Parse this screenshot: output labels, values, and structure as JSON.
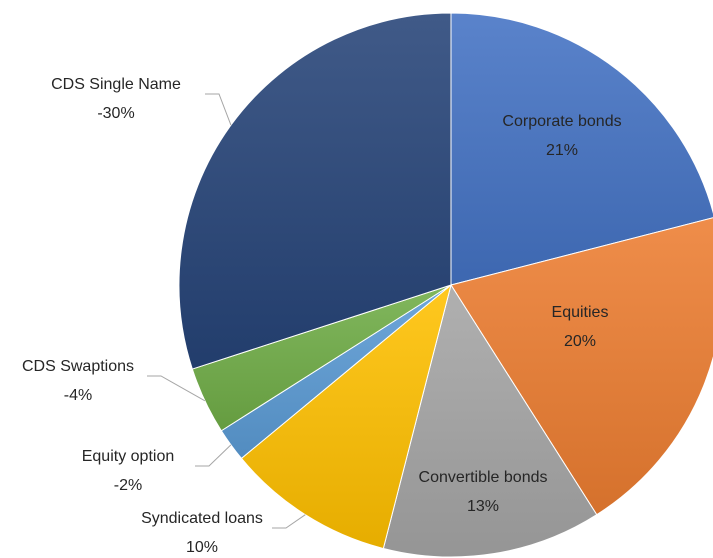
{
  "chart_data": {
    "type": "pie",
    "title": "",
    "slices": [
      {
        "label": "Corporate bonds",
        "value_label": "21%",
        "value": 21,
        "color": "#4472C4"
      },
      {
        "label": "Equities",
        "value_label": "20%",
        "value": 20,
        "color": "#ED7D31"
      },
      {
        "label": "Convertible bonds",
        "value_label": "13%",
        "value": 13,
        "color": "#A5A5A5"
      },
      {
        "label": "Syndicated loans",
        "value_label": "10%",
        "value": 10,
        "color": "#FFC000"
      },
      {
        "label": "Equity option",
        "value_label": "-2%",
        "value": 2,
        "color": "#5B9BD5"
      },
      {
        "label": "CDS Swaptions",
        "value_label": "-4%",
        "value": 4,
        "color": "#70AD47"
      },
      {
        "label": "CDS Single Name",
        "value_label": "-30%",
        "value": 30,
        "color": "#264478"
      }
    ]
  }
}
